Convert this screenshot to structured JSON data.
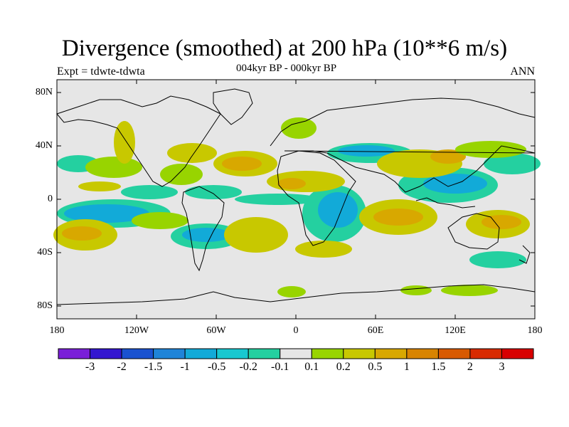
{
  "title": "Divergence (smoothed) at 200 hPa (10**6 m/s)",
  "subtitle_left": "Expt = tdwte-tdwta",
  "subtitle_center": "004kyr BP - 000kyr BP",
  "subtitle_right": "ANN",
  "lat_labels": [
    "80N",
    "40N",
    "0",
    "40S",
    "80S"
  ],
  "lon_labels": [
    "180",
    "120W",
    "60W",
    "0",
    "60E",
    "120E",
    "180"
  ],
  "colorbar": {
    "labels": [
      "-3",
      "-2",
      "-1.5",
      "-1",
      "-0.5",
      "-0.2",
      "-0.1",
      "0.1",
      "0.2",
      "0.5",
      "1",
      "1.5",
      "2",
      "3"
    ],
    "colors": [
      "#7a1fd8",
      "#3316d0",
      "#1a52d0",
      "#1f84d8",
      "#12aad8",
      "#18c8d0",
      "#24d0a0",
      "#e6e6e6",
      "#98d400",
      "#c8c800",
      "#d8a800",
      "#d88400",
      "#d85a00",
      "#d82a00",
      "#d80000"
    ]
  },
  "colors": {
    "background": "#e6e6e6",
    "coast": "#000000"
  }
}
